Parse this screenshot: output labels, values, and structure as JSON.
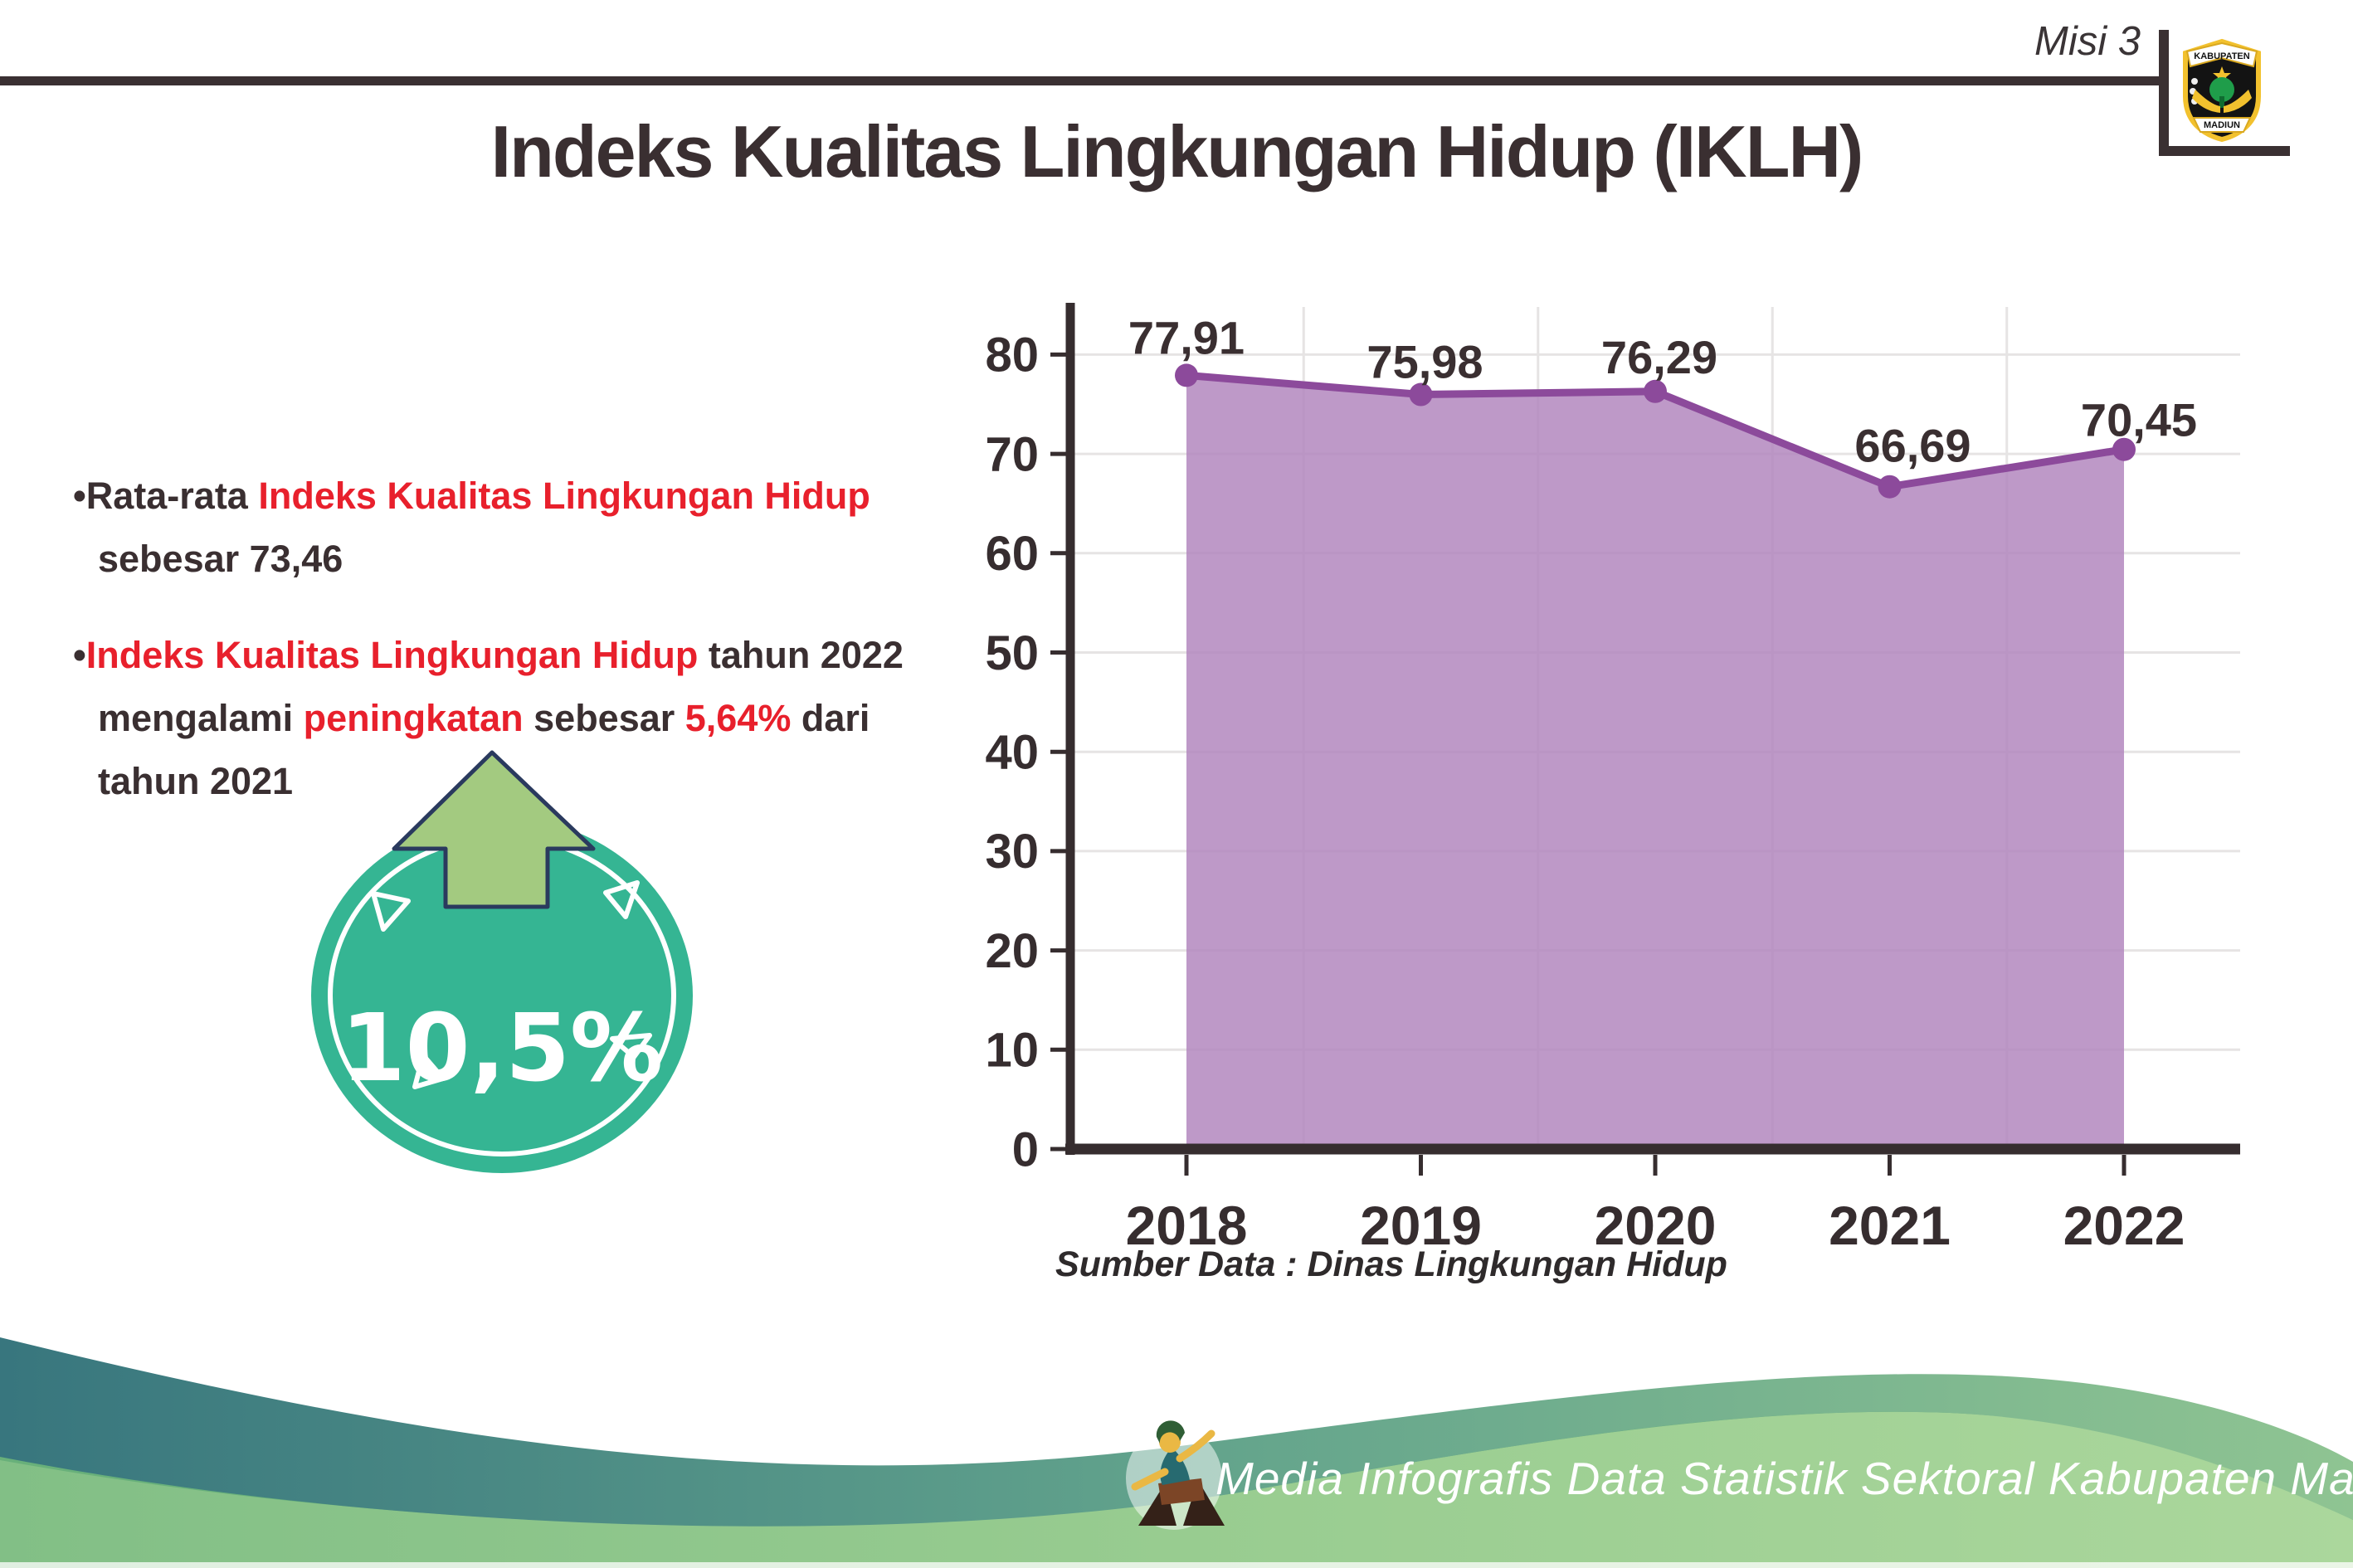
{
  "header": {
    "misi": "Misi 3",
    "title": "Indeks Kualitas Lingkungan Hidup (IKLH)"
  },
  "logo": {
    "top": "KABUPATEN",
    "bottom": "MADIUN"
  },
  "bullets": [
    {
      "lines": [
        [
          {
            "t": "Rata-rata ",
            "c": "dark"
          },
          {
            "t": "Indeks Kualitas Lingkungan Hidup",
            "c": "red"
          }
        ],
        [
          {
            "t": "sebesar 73,46",
            "c": "dark"
          }
        ]
      ]
    },
    {
      "lines": [
        [
          {
            "t": "Indeks Kualitas Lingkungan Hidup",
            "c": "red"
          },
          {
            "t": " tahun 2022",
            "c": "dark"
          }
        ],
        [
          {
            "t": "mengalami ",
            "c": "dark"
          },
          {
            "t": "peningkatan",
            "c": "red"
          },
          {
            "t": " sebesar ",
            "c": "dark"
          },
          {
            "t": "5,64%",
            "c": "red"
          },
          {
            "t": " dari",
            "c": "dark"
          }
        ],
        [
          {
            "t": "tahun 2021",
            "c": "dark"
          }
        ]
      ]
    }
  ],
  "badge": {
    "value": "10,5%"
  },
  "chart_data": {
    "type": "area",
    "title": "",
    "categories": [
      "2018",
      "2019",
      "2020",
      "2021",
      "2022"
    ],
    "values": [
      77.91,
      75.98,
      76.29,
      66.69,
      70.45
    ],
    "point_labels": [
      "77,91",
      "75,98",
      "76,29",
      "66,69",
      "70,45"
    ],
    "series_name": "IKLH",
    "xlabel": "",
    "ylabel": "",
    "ylim": [
      0,
      80
    ],
    "ytick_step": 10,
    "grid": true,
    "legend": "none"
  },
  "source_caption": "Sumber Data : Dinas Lingkungan Hidup",
  "footer": {
    "caption": "Media Infografis Data Statistik Sektoral Kabupaten Madiun |"
  },
  "colors": {
    "text_dark": "#3a2f31",
    "accent_red": "#e8202c",
    "line_purple": "#8c4a9b",
    "fill_purple": "#b286bd",
    "axis": "#362d2f",
    "grid": "#e6e4e4",
    "badge_teal": "#35b593",
    "arrow_green": "#a3ca80",
    "arrow_outline": "#2a3a5e",
    "footer_teal": "#38767e",
    "footer_green": "#98cc90"
  }
}
